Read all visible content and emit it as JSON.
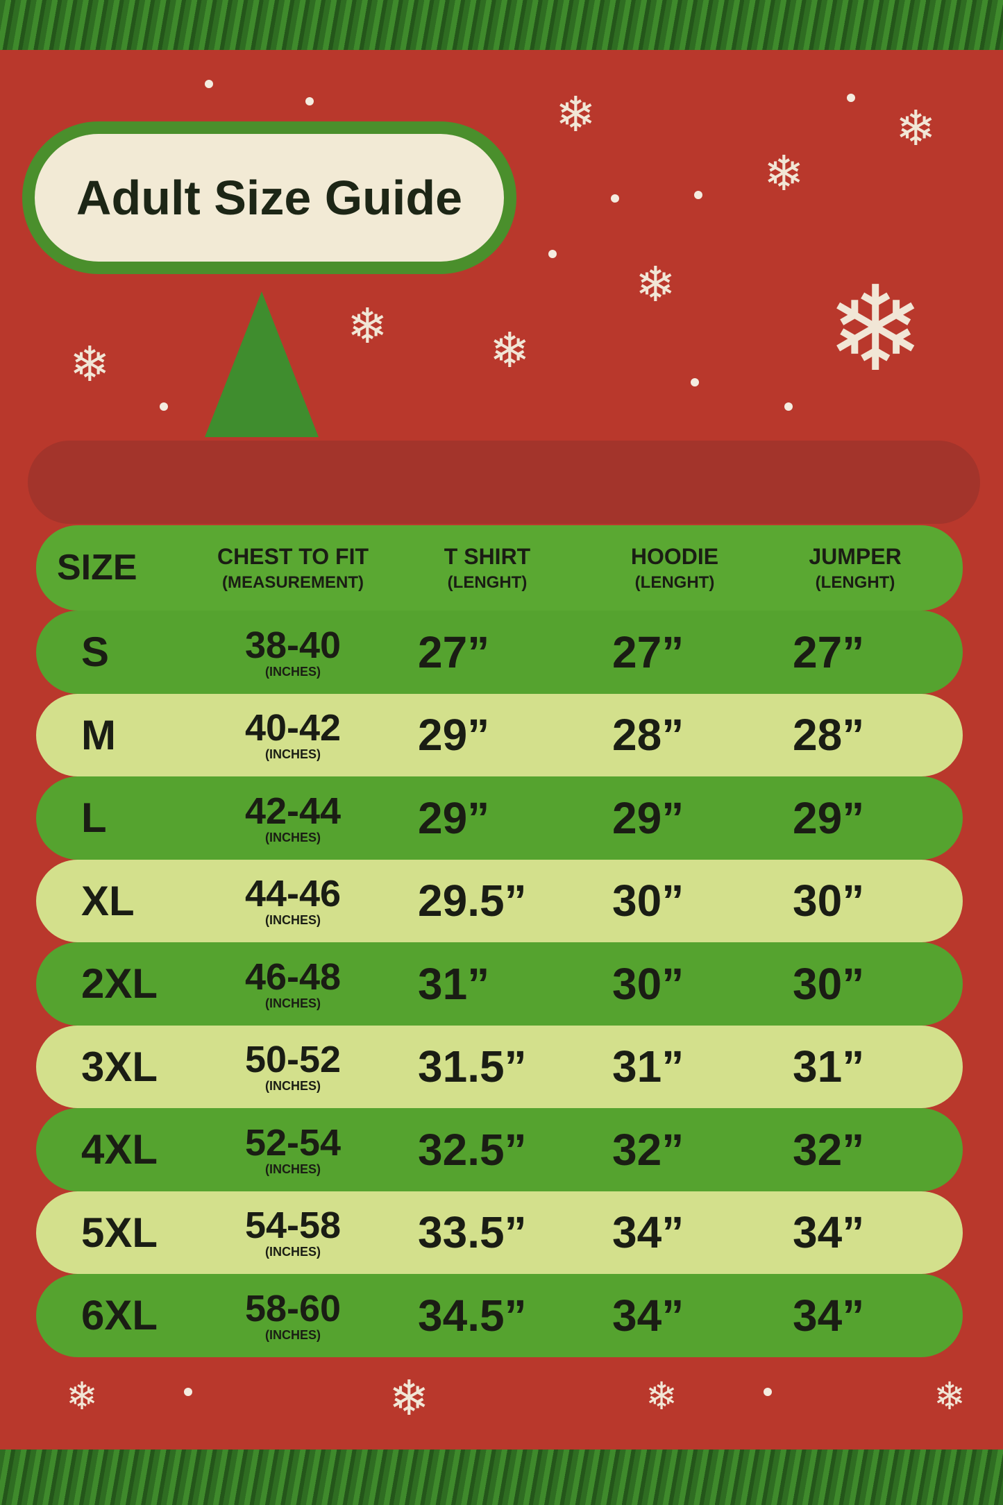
{
  "title": "Adult Size Guide",
  "colors": {
    "background": "#b9382c",
    "dark_row": "#55a32f",
    "light_row": "#d3e08c",
    "text": "#1a1d14"
  },
  "headers": {
    "size": "SIZE",
    "chest": "CHEST TO FIT",
    "chest_sub": "(MEASUREMENT)",
    "tshirt": "T SHIRT",
    "tshirt_sub": "(LENGHT)",
    "hoodie": "HOODIE",
    "hoodie_sub": "(LENGHT)",
    "jumper": "JUMPER",
    "jumper_sub": "(LENGHT)"
  },
  "unit": "(INCHES)",
  "rows": [
    {
      "size": "S",
      "chest": "38-40",
      "tshirt": "27”",
      "hoodie": "27”",
      "jumper": "27”"
    },
    {
      "size": "M",
      "chest": "40-42",
      "tshirt": "29”",
      "hoodie": "28”",
      "jumper": "28”"
    },
    {
      "size": "L",
      "chest": "42-44",
      "tshirt": "29”",
      "hoodie": "29”",
      "jumper": "29”"
    },
    {
      "size": "XL",
      "chest": "44-46",
      "tshirt": "29.5”",
      "hoodie": "30”",
      "jumper": "30”"
    },
    {
      "size": "2XL",
      "chest": "46-48",
      "tshirt": "31”",
      "hoodie": "30”",
      "jumper": "30”"
    },
    {
      "size": "3XL",
      "chest": "50-52",
      "tshirt": "31.5”",
      "hoodie": "31”",
      "jumper": "31”"
    },
    {
      "size": "4XL",
      "chest": "52-54",
      "tshirt": "32.5”",
      "hoodie": "32”",
      "jumper": "32”"
    },
    {
      "size": "5XL",
      "chest": "54-58",
      "tshirt": "33.5”",
      "hoodie": "34”",
      "jumper": "34”"
    },
    {
      "size": "6XL",
      "chest": "58-60",
      "tshirt": "34.5”",
      "hoodie": "34”",
      "jumper": "34”"
    }
  ]
}
